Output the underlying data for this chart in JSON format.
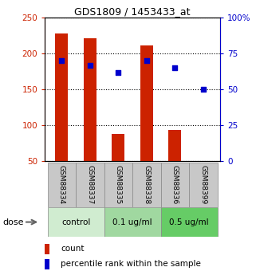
{
  "title": "GDS1809 / 1453433_at",
  "samples": [
    "GSM88334",
    "GSM88337",
    "GSM88335",
    "GSM88338",
    "GSM88336",
    "GSM88399"
  ],
  "bar_values": [
    228,
    222,
    88,
    212,
    93,
    50
  ],
  "dot_values": [
    70,
    67,
    62,
    70,
    65,
    50
  ],
  "bar_bottom": 50,
  "ylim_left": [
    50,
    250
  ],
  "ylim_right": [
    0,
    100
  ],
  "left_ticks": [
    50,
    100,
    150,
    200,
    250
  ],
  "right_ticks": [
    0,
    25,
    50,
    75,
    100
  ],
  "dose_groups": [
    {
      "label": "control",
      "indices": [
        0,
        1
      ],
      "color": "#d0ecd0"
    },
    {
      "label": "0.1 ug/ml",
      "indices": [
        2,
        3
      ],
      "color": "#a0d8a0"
    },
    {
      "label": "0.5 ug/ml",
      "indices": [
        4,
        5
      ],
      "color": "#66cc66"
    }
  ],
  "bar_color": "#cc2200",
  "dot_color": "#0000cc",
  "bar_width": 0.45,
  "grid_color": "black",
  "grid_linestyle": "dotted",
  "grid_linewidth": 0.8,
  "left_label_color": "#cc2200",
  "right_label_color": "#0000cc",
  "legend_count": "count",
  "legend_pct": "percentile rank within the sample",
  "sample_bg": "#c8c8c8",
  "dose_label": "dose"
}
